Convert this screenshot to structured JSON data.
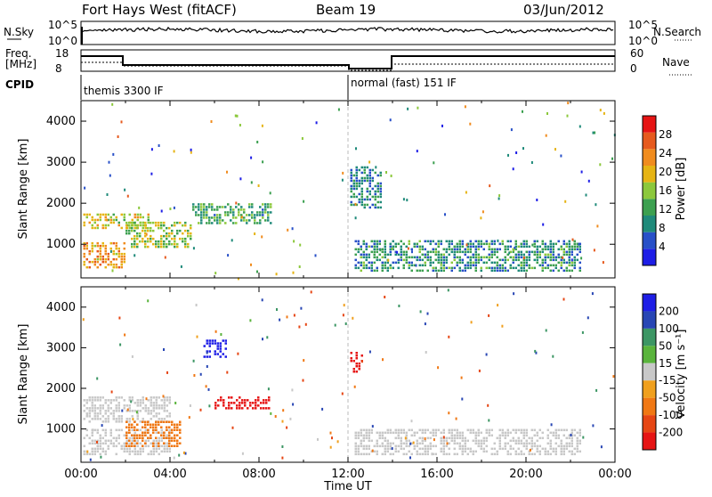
{
  "header": {
    "station": "Fort Hays West (fitACF)",
    "beam": "Beam 19",
    "date": "03/Jun/2012"
  },
  "summary_panel": {
    "nsky_label": "N.Sky",
    "nsearch_label": "N.Search",
    "noise_ticks_left": [
      "10^5",
      "10^0"
    ],
    "noise_ticks_right": [
      "10^5",
      "10^0"
    ],
    "freq_label_1": "Freq.",
    "freq_label_2": "[MHz]",
    "freq_ticks": [
      "18",
      "8"
    ],
    "nave_label": "Nave",
    "nave_ticks": [
      "60",
      "0"
    ],
    "cpid_label": "CPID",
    "cpid_segments": [
      {
        "start_hour": 0,
        "label": "themis 3300 IF"
      },
      {
        "start_hour": 12,
        "label": "normal (fast) 151 IF"
      }
    ]
  },
  "colors": {
    "power_scale": [
      "#1e1ee6",
      "#2850c8",
      "#1f8a7a",
      "#3ca050",
      "#8cc83c",
      "#e6b414",
      "#f08c1e",
      "#e65a1e",
      "#e61414"
    ],
    "velocity_scale": [
      "#1e1ee6",
      "#2846b4",
      "#3c9664",
      "#5ab43c",
      "#c8c8c8",
      "#f0a01e",
      "#f07814",
      "#e64614",
      "#e61414"
    ],
    "grey_ground": "#c8c8c8"
  },
  "chart_data": [
    {
      "type": "heatmap",
      "name": "power",
      "xlabel": "Time UT",
      "ylabel": "Slant Range [km]",
      "xlim": [
        0,
        24
      ],
      "ylim": [
        180,
        4500
      ],
      "y_ticks": [
        "1000",
        "2000",
        "3000",
        "4000"
      ],
      "x_ticks": [
        "00:00",
        "04:00",
        "08:00",
        "12:00",
        "16:00",
        "20:00",
        "00:00"
      ],
      "colorbar": {
        "label": "Power [dB]",
        "range": [
          0,
          32
        ],
        "ticks": [
          "4",
          "8",
          "12",
          "16",
          "20",
          "24",
          "28"
        ]
      },
      "echo_regions": [
        {
          "t0": 0.1,
          "t1": 2.0,
          "r0": 450,
          "r1": 1050,
          "level": 22
        },
        {
          "t0": 0.1,
          "t1": 3.0,
          "r0": 1400,
          "r1": 1750,
          "level": 18
        },
        {
          "t0": 2.0,
          "t1": 5.0,
          "r0": 900,
          "r1": 1550,
          "level": 16
        },
        {
          "t0": 5.0,
          "t1": 8.5,
          "r0": 1500,
          "r1": 2000,
          "level": 12
        },
        {
          "t0": 12.3,
          "t1": 22.5,
          "r0": 350,
          "r1": 1100,
          "level": 10
        },
        {
          "t0": 12.1,
          "t1": 13.5,
          "r0": 1900,
          "r1": 2900,
          "level": 9
        }
      ]
    },
    {
      "type": "heatmap",
      "name": "velocity",
      "xlabel": "Time UT",
      "ylabel": "Slant Range [km]",
      "xlim": [
        0,
        24
      ],
      "ylim": [
        180,
        4500
      ],
      "y_ticks": [
        "1000",
        "2000",
        "3000",
        "4000"
      ],
      "x_ticks": [
        "00:00",
        "04:00",
        "08:00",
        "12:00",
        "16:00",
        "20:00",
        "00:00"
      ],
      "colorbar": {
        "label": "Velocity [m s⁻¹]",
        "ticks": [
          "200",
          "100",
          "50",
          "15",
          "-15",
          "-50",
          "-100",
          "-200"
        ]
      },
      "echo_regions": [
        {
          "t0": 0.1,
          "t1": 4.0,
          "r0": 1200,
          "r1": 1800,
          "vel": 0
        },
        {
          "t0": 0.1,
          "t1": 4.0,
          "r0": 350,
          "r1": 1000,
          "vel": 0
        },
        {
          "t0": 2.0,
          "t1": 4.5,
          "r0": 600,
          "r1": 1200,
          "vel": -80
        },
        {
          "t0": 6.0,
          "t1": 8.5,
          "r0": 1500,
          "r1": 1800,
          "vel": -180
        },
        {
          "t0": 5.5,
          "t1": 6.5,
          "r0": 2800,
          "r1": 3200,
          "vel": 180
        },
        {
          "t0": 12.3,
          "t1": 22.5,
          "r0": 400,
          "r1": 1000,
          "vel": 0
        },
        {
          "t0": 12.1,
          "t1": 12.7,
          "r0": 2400,
          "r1": 2900,
          "vel": -200
        }
      ]
    }
  ]
}
